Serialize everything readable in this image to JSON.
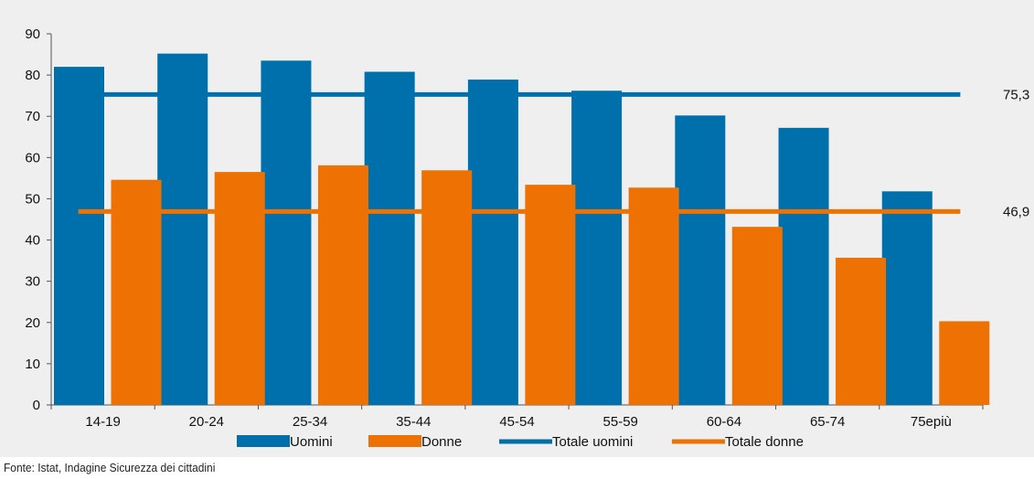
{
  "chart_data": {
    "type": "bar",
    "title": "",
    "xlabel": "",
    "ylabel": "",
    "ylim": [
      0,
      90
    ],
    "yticks": [
      0,
      10,
      20,
      30,
      40,
      50,
      60,
      70,
      80,
      90
    ],
    "grid": false,
    "legend": "bottom",
    "categories": [
      "14-19",
      "20-24",
      "25-34",
      "35-44",
      "45-54",
      "55-59",
      "60-64",
      "65-74",
      "75epiù"
    ],
    "series": [
      {
        "name": "Uomini",
        "color": "#0070ad",
        "values": [
          82.0,
          85.2,
          83.5,
          80.8,
          78.9,
          76.2,
          70.2,
          67.2,
          51.8
        ]
      },
      {
        "name": "Donne",
        "color": "#ee7203",
        "values": [
          54.6,
          56.5,
          58.1,
          56.9,
          53.4,
          52.7,
          43.2,
          35.7,
          20.3
        ]
      }
    ],
    "reference_lines": [
      {
        "name": "Totale uomini",
        "color": "#0070ad",
        "value": 75.3,
        "label": "75,3"
      },
      {
        "name": "Totale donne",
        "color": "#ee7203",
        "value": 46.9,
        "label": "46,9"
      }
    ]
  },
  "source": "Fonte: Istat, Indagine Sicurezza dei cittadini"
}
